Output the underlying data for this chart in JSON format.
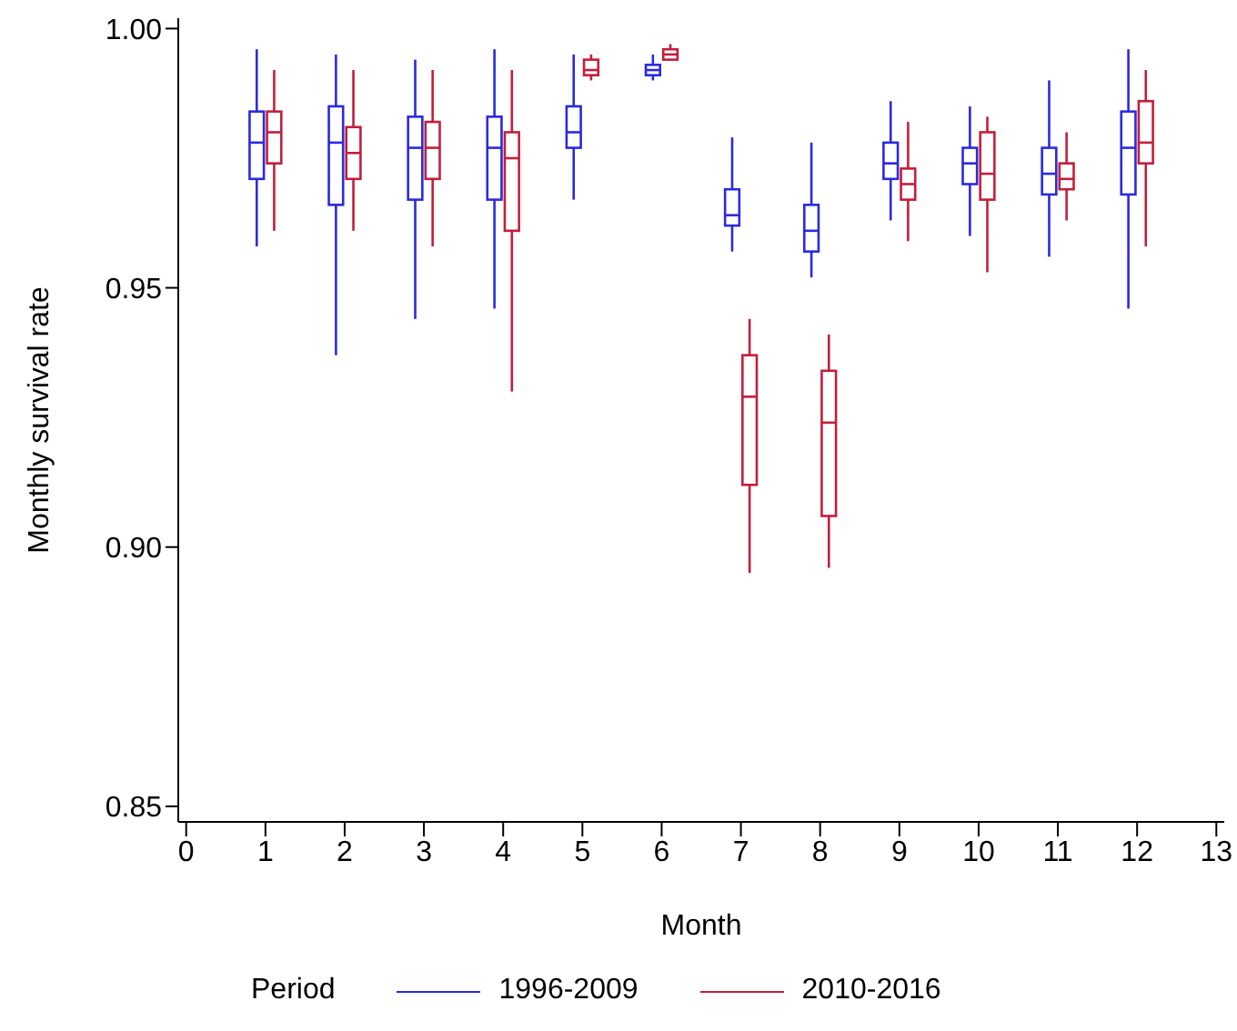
{
  "chart_data": {
    "type": "box",
    "xlabel": "Month",
    "ylabel": "Monthly survival rate",
    "legend_title": "Period",
    "legend": "bottom",
    "x": [
      1,
      2,
      3,
      4,
      5,
      6,
      7,
      8,
      9,
      10,
      11,
      12
    ],
    "xlim": [
      -0.1,
      13.1
    ],
    "xticks": [
      0,
      1,
      2,
      3,
      4,
      5,
      6,
      7,
      8,
      9,
      10,
      11,
      12,
      13
    ],
    "ylim": [
      0.847,
      1.002
    ],
    "yticks": [
      {
        "value": 0.85,
        "label": "0.85"
      },
      {
        "value": 0.9,
        "label": "0.90"
      },
      {
        "value": 0.95,
        "label": "0.95"
      },
      {
        "value": 1.0,
        "label": "1.00"
      }
    ],
    "series": [
      {
        "name": "1996-2009",
        "color": "#2a2ae0",
        "boxes": [
          {
            "low": 0.958,
            "q1": 0.971,
            "median": 0.978,
            "q3": 0.984,
            "high": 0.996
          },
          {
            "low": 0.937,
            "q1": 0.966,
            "median": 0.978,
            "q3": 0.985,
            "high": 0.995
          },
          {
            "low": 0.944,
            "q1": 0.967,
            "median": 0.977,
            "q3": 0.983,
            "high": 0.994
          },
          {
            "low": 0.946,
            "q1": 0.967,
            "median": 0.977,
            "q3": 0.983,
            "high": 0.996
          },
          {
            "low": 0.967,
            "q1": 0.977,
            "median": 0.98,
            "q3": 0.985,
            "high": 0.995
          },
          {
            "low": 0.99,
            "q1": 0.991,
            "median": 0.992,
            "q3": 0.993,
            "high": 0.995
          },
          {
            "low": 0.957,
            "q1": 0.962,
            "median": 0.964,
            "q3": 0.969,
            "high": 0.979
          },
          {
            "low": 0.952,
            "q1": 0.957,
            "median": 0.961,
            "q3": 0.966,
            "high": 0.978
          },
          {
            "low": 0.963,
            "q1": 0.971,
            "median": 0.974,
            "q3": 0.978,
            "high": 0.986
          },
          {
            "low": 0.96,
            "q1": 0.97,
            "median": 0.974,
            "q3": 0.977,
            "high": 0.985
          },
          {
            "low": 0.956,
            "q1": 0.968,
            "median": 0.972,
            "q3": 0.977,
            "high": 0.99
          },
          {
            "low": 0.946,
            "q1": 0.968,
            "median": 0.977,
            "q3": 0.984,
            "high": 0.996
          }
        ]
      },
      {
        "name": "2010-2016",
        "color": "#c41e3a",
        "boxes": [
          {
            "low": 0.961,
            "q1": 0.974,
            "median": 0.98,
            "q3": 0.984,
            "high": 0.992
          },
          {
            "low": 0.961,
            "q1": 0.971,
            "median": 0.976,
            "q3": 0.981,
            "high": 0.992
          },
          {
            "low": 0.958,
            "q1": 0.971,
            "median": 0.977,
            "q3": 0.982,
            "high": 0.992
          },
          {
            "low": 0.93,
            "q1": 0.961,
            "median": 0.975,
            "q3": 0.98,
            "high": 0.992
          },
          {
            "low": 0.99,
            "q1": 0.991,
            "median": 0.992,
            "q3": 0.994,
            "high": 0.995
          },
          {
            "low": 0.994,
            "q1": 0.994,
            "median": 0.995,
            "q3": 0.996,
            "high": 0.997
          },
          {
            "low": 0.895,
            "q1": 0.912,
            "median": 0.929,
            "q3": 0.937,
            "high": 0.944
          },
          {
            "low": 0.896,
            "q1": 0.906,
            "median": 0.924,
            "q3": 0.934,
            "high": 0.941
          },
          {
            "low": 0.959,
            "q1": 0.967,
            "median": 0.97,
            "q3": 0.973,
            "high": 0.982
          },
          {
            "low": 0.953,
            "q1": 0.967,
            "median": 0.972,
            "q3": 0.98,
            "high": 0.983
          },
          {
            "low": 0.963,
            "q1": 0.969,
            "median": 0.971,
            "q3": 0.974,
            "high": 0.98
          },
          {
            "low": 0.958,
            "q1": 0.974,
            "median": 0.978,
            "q3": 0.986,
            "high": 0.992
          }
        ]
      }
    ]
  }
}
